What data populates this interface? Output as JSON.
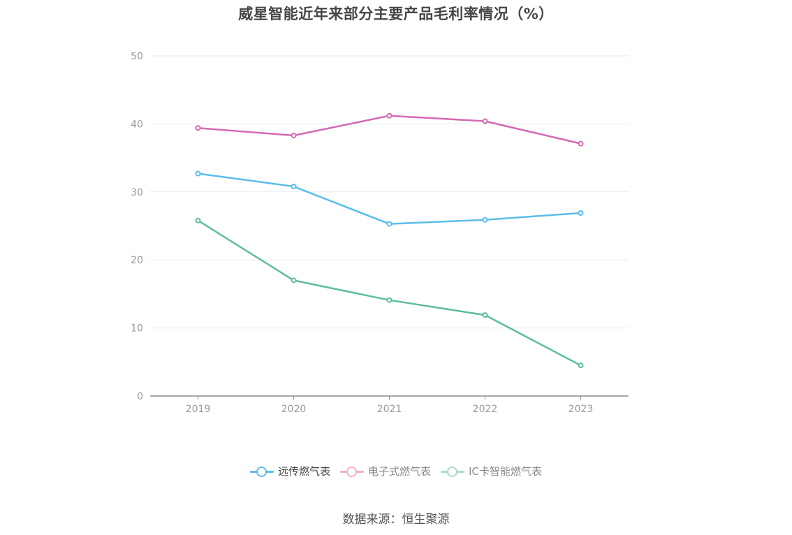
{
  "colors": {
    "series": [
      "#5bbdeb",
      "#d46ab4",
      "#5dbd9f"
    ],
    "legend_faded": [
      "#5bbdeb",
      "#f0aed6",
      "#a8ddc8"
    ],
    "grid": "#e6e9f0",
    "axis": "#8c8c8c",
    "tick_label": "#999999"
  },
  "legend": {
    "items": [
      {
        "label": "远传燃气表",
        "active": true
      },
      {
        "label": "电子式燃气表",
        "active": false
      },
      {
        "label": "IC卡智能燃气表",
        "active": false
      }
    ]
  },
  "source": "数据来源：恒生聚源",
  "chart_data": {
    "type": "line",
    "title": "威星智能近年来部分主要产品毛利率情况（%）",
    "xlabel": "",
    "ylabel": "",
    "categories": [
      "2019",
      "2020",
      "2021",
      "2022",
      "2023"
    ],
    "ylim": [
      0,
      50
    ],
    "yticks": [
      0,
      10,
      20,
      30,
      40,
      50
    ],
    "grid": true,
    "legend_position": "bottom",
    "series": [
      {
        "name": "远传燃气表",
        "values": [
          32.7,
          30.8,
          25.3,
          25.9,
          26.9
        ]
      },
      {
        "name": "电子式燃气表",
        "values": [
          39.4,
          38.3,
          41.2,
          40.4,
          37.1
        ]
      },
      {
        "name": "IC卡智能燃气表",
        "values": [
          25.8,
          17.0,
          14.1,
          11.9,
          4.5
        ]
      }
    ]
  }
}
